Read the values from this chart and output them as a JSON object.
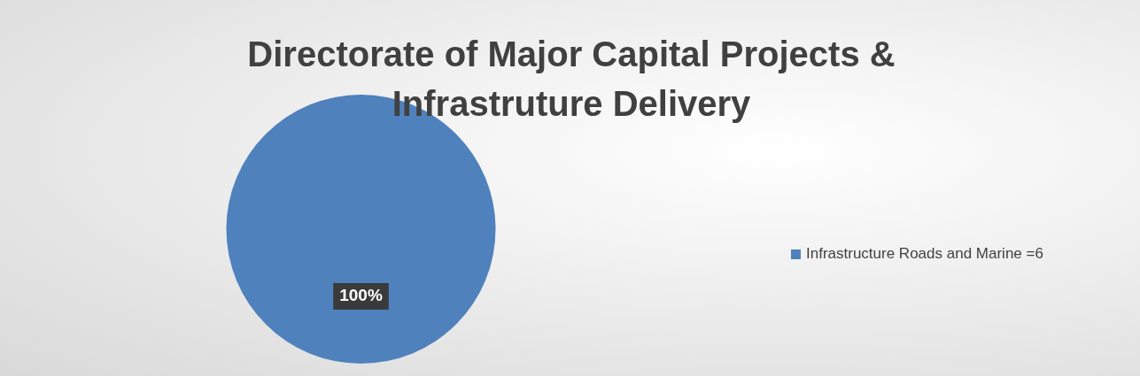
{
  "chart_data": {
    "type": "pie",
    "title": "Directorate of Major Capital Projects & Infrastruture Delivery",
    "categories": [
      "Infrastructure Roads and Marine =6"
    ],
    "values": [
      100
    ],
    "colors": [
      "#4f81bd"
    ],
    "value_labels": [
      "100%"
    ],
    "legend": "right"
  }
}
